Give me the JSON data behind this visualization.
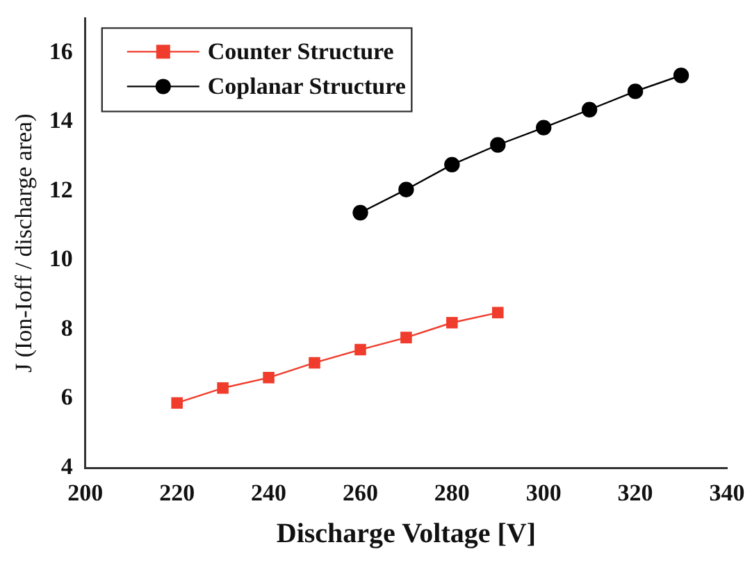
{
  "chart_data": {
    "type": "line",
    "xlabel": "Discharge Voltage [V]",
    "ylabel": "J (Ion-Ioff / discharge area)",
    "xlim": [
      200,
      340
    ],
    "xticks": [
      200,
      220,
      240,
      260,
      280,
      300,
      320,
      340
    ],
    "ylim": [
      4,
      17
    ],
    "yticks": [
      4,
      6,
      8,
      10,
      12,
      14,
      16
    ],
    "legend": "top left",
    "grid": false,
    "series": [
      {
        "name": "Counter Structure",
        "color": "#f03c2c",
        "marker": "square",
        "x": [
          220,
          230,
          240,
          250,
          260,
          270,
          280,
          290
        ],
        "values": [
          5.88,
          6.31,
          6.61,
          7.04,
          7.42,
          7.77,
          8.2,
          8.49
        ]
      },
      {
        "name": "Coplanar Structure",
        "color": "#000000",
        "marker": "circle",
        "x": [
          260,
          270,
          280,
          290,
          300,
          310,
          320,
          330
        ],
        "values": [
          11.38,
          12.05,
          12.77,
          13.34,
          13.84,
          14.36,
          14.89,
          15.35
        ]
      }
    ]
  }
}
